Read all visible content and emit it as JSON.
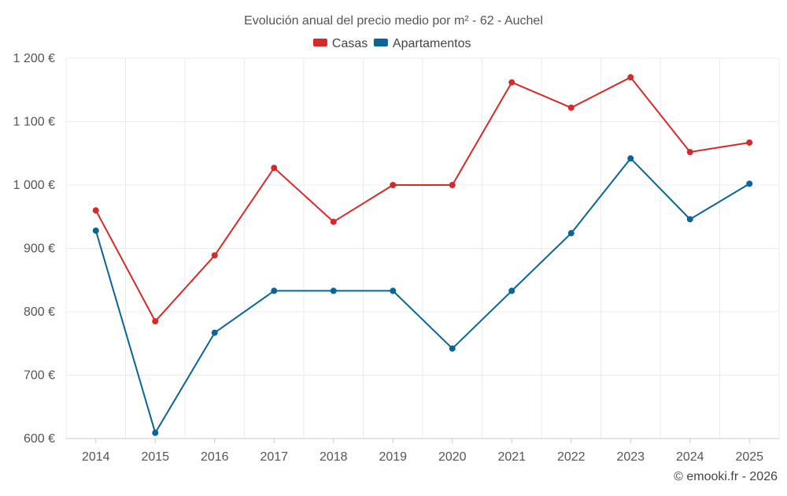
{
  "chart_data": {
    "type": "line",
    "title": "Evolución anual del precio medio por m² - 62 - Auchel",
    "xlabel": "",
    "ylabel": "",
    "categories": [
      "2014",
      "2015",
      "2016",
      "2017",
      "2018",
      "2019",
      "2020",
      "2021",
      "2022",
      "2023",
      "2024",
      "2025"
    ],
    "ylim": [
      600,
      1200
    ],
    "yticks": [
      600,
      700,
      800,
      900,
      1000,
      1100,
      1200
    ],
    "ytick_labels": [
      "600 €",
      "700 €",
      "800 €",
      "900 €",
      "1 000 €",
      "1 100 €",
      "1 200 €"
    ],
    "grid": true,
    "legend_position": "top-center",
    "series": [
      {
        "name": "Casas",
        "color": "#d62a2a",
        "values": [
          960,
          785,
          889,
          1027,
          942,
          1000,
          1000,
          1162,
          1122,
          1170,
          1052,
          1067
        ]
      },
      {
        "name": "Apartamentos",
        "color": "#0a6496",
        "values": [
          928,
          609,
          767,
          833,
          833,
          833,
          742,
          833,
          924,
          1042,
          946,
          1002
        ]
      }
    ]
  },
  "credit": "© emooki.fr - 2026"
}
